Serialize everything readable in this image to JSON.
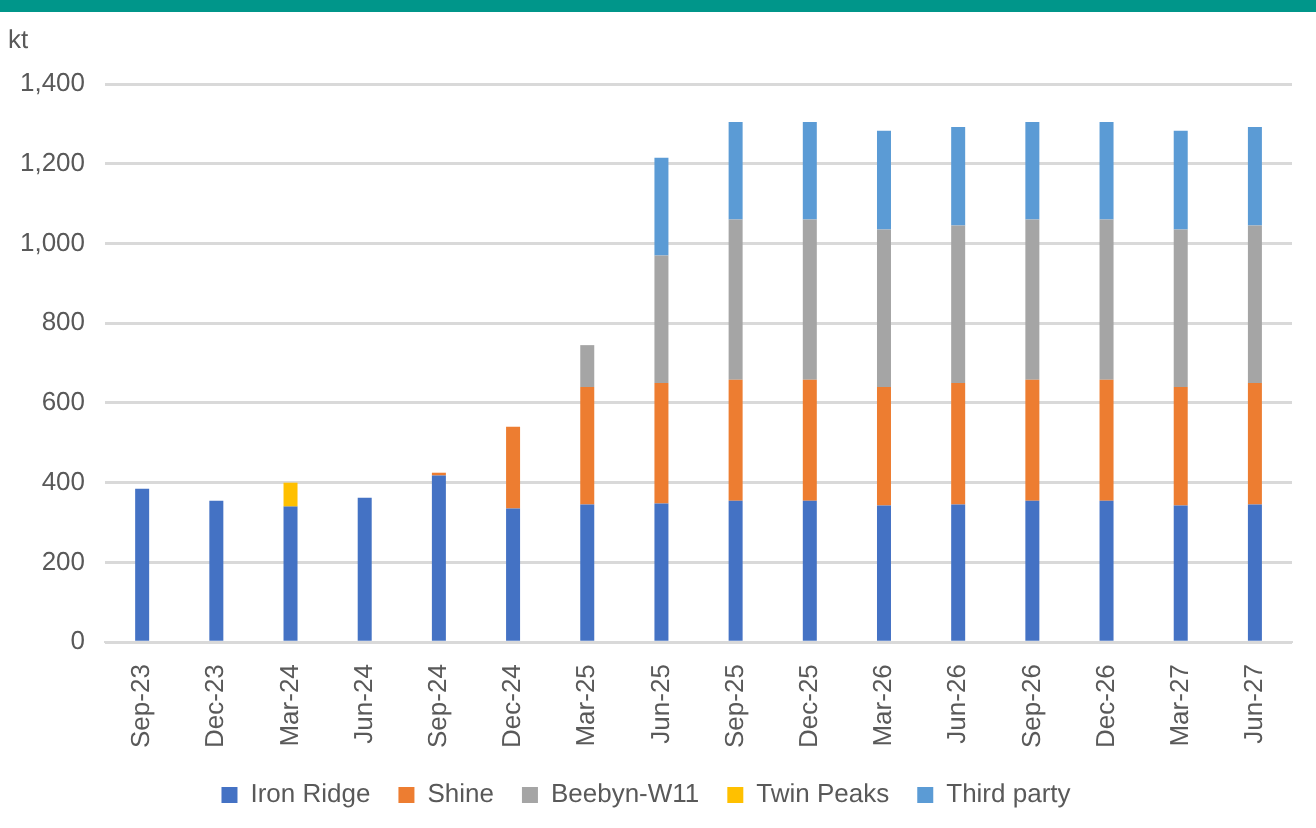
{
  "chart_data": {
    "type": "bar",
    "stacked": true,
    "ylabel": "kt",
    "categories": [
      "Sep-23",
      "Dec-23",
      "Mar-24",
      "Jun-24",
      "Sep-24",
      "Dec-24",
      "Mar-25",
      "Jun-25",
      "Sep-25",
      "Dec-25",
      "Mar-26",
      "Jun-26",
      "Sep-26",
      "Dec-26",
      "Mar-27",
      "Jun-27"
    ],
    "series": [
      {
        "name": "Iron Ridge",
        "color": "#4472c4",
        "values": [
          385,
          355,
          340,
          362,
          418,
          335,
          345,
          348,
          355,
          355,
          343,
          345,
          355,
          355,
          343,
          345
        ]
      },
      {
        "name": "Shine",
        "color": "#ed7d31",
        "values": [
          null,
          null,
          null,
          null,
          7,
          205,
          295,
          302,
          303,
          303,
          297,
          305,
          303,
          303,
          297,
          305
        ]
      },
      {
        "name": "Beebyn-W11",
        "color": "#a5a5a5",
        "values": [
          null,
          null,
          null,
          null,
          null,
          null,
          105,
          320,
          402,
          402,
          395,
          395,
          402,
          402,
          395,
          395
        ]
      },
      {
        "name": "Twin Peaks",
        "color": "#ffc000",
        "values": [
          null,
          null,
          60,
          null,
          null,
          null,
          null,
          null,
          null,
          null,
          null,
          null,
          null,
          null,
          null,
          null
        ]
      },
      {
        "name": "Third party",
        "color": "#5b9bd5",
        "values": [
          null,
          null,
          null,
          null,
          null,
          null,
          null,
          245,
          245,
          245,
          248,
          247,
          245,
          245,
          248,
          247
        ]
      }
    ],
    "ylim": [
      0,
      1400
    ],
    "yticks": [
      0,
      200,
      400,
      600,
      800,
      {
        "value": 1000,
        "label": "1,000"
      },
      {
        "value": 1200,
        "label": "1,200"
      },
      {
        "value": 1400,
        "label": "1,400"
      }
    ],
    "grid": "y",
    "legend": "bottom"
  }
}
